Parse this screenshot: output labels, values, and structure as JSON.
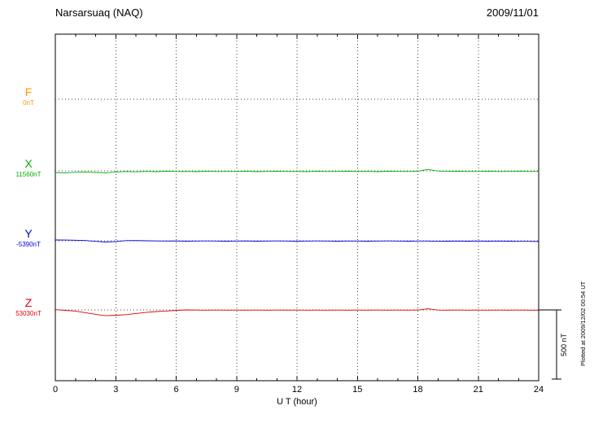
{
  "header": {
    "title": "Narsarsuaq (NAQ)",
    "date": "2009/11/01"
  },
  "x_axis": {
    "label": "U T (hour)",
    "min": 0,
    "max": 24,
    "ticks": [
      0,
      3,
      6,
      9,
      12,
      15,
      18,
      21,
      24
    ],
    "minor_step": 1
  },
  "scale_bar": {
    "label": "500 nT",
    "nT": 500
  },
  "footer_note": "Plotted at 2009/12/02 00:54 UT",
  "chart_data": {
    "type": "line",
    "title": "Narsarsuaq (NAQ) magnetogram 2009/11/01",
    "xlabel": "U T (hour)",
    "x_range": [
      0,
      24
    ],
    "x_start": 0,
    "x_step": 0.5,
    "grid": "dotted",
    "series": [
      {
        "name": "F",
        "baseline_label": "0nT",
        "baseline_value": 0,
        "color": "#ff9900",
        "visible": false,
        "values": []
      },
      {
        "name": "X",
        "baseline_label": "11560nT",
        "baseline_value": 11560,
        "color": "#00b000",
        "visible": true,
        "values": [
          -12,
          -15,
          -10,
          -8,
          -12,
          -14,
          -8,
          -5,
          -7,
          -4,
          -6,
          -3,
          -5,
          -4,
          -6,
          -3,
          -5,
          -4,
          -5,
          -3,
          -6,
          -4,
          -3,
          -5,
          -4,
          -6,
          -3,
          -5,
          -4,
          -3,
          -5,
          -4,
          -6,
          -3,
          -4,
          -5,
          -3,
          10,
          -2,
          -4,
          -3,
          -5,
          -4,
          -3,
          -5,
          -4,
          -3,
          -5,
          -4
        ]
      },
      {
        "name": "Y",
        "baseline_label": "-5390nT",
        "baseline_value": -5390,
        "color": "#0000dd",
        "visible": true,
        "values": [
          6,
          5,
          4,
          2,
          -4,
          -9,
          -5,
          1,
          2,
          0,
          -1,
          -2,
          -1,
          -3,
          -2,
          -1,
          -2,
          -3,
          -2,
          -1,
          -3,
          -2,
          -1,
          -2,
          -3,
          -2,
          -1,
          -2,
          -3,
          -2,
          -2,
          -3,
          -2,
          -1,
          -2,
          -3,
          -2,
          -2,
          -4,
          -3,
          -2,
          -3,
          -2,
          -3,
          -2,
          -3,
          -4,
          -4,
          -5
        ]
      },
      {
        "name": "Z",
        "baseline_label": "53030nT",
        "baseline_value": 53030,
        "color": "#dd0000",
        "visible": true,
        "values": [
          2,
          -3,
          -8,
          -20,
          -32,
          -42,
          -38,
          -34,
          -26,
          -18,
          -12,
          -8,
          -3,
          0,
          -1,
          -2,
          -1,
          -2,
          -1,
          -2,
          -1,
          -2,
          -1,
          -2,
          -1,
          -2,
          -1,
          -2,
          -1,
          -2,
          -1,
          -2,
          -1,
          -2,
          -1,
          -2,
          -1,
          8,
          -1,
          -2,
          -1,
          -2,
          -1,
          -2,
          -1,
          -2,
          -1,
          -2,
          -2
        ]
      }
    ]
  }
}
